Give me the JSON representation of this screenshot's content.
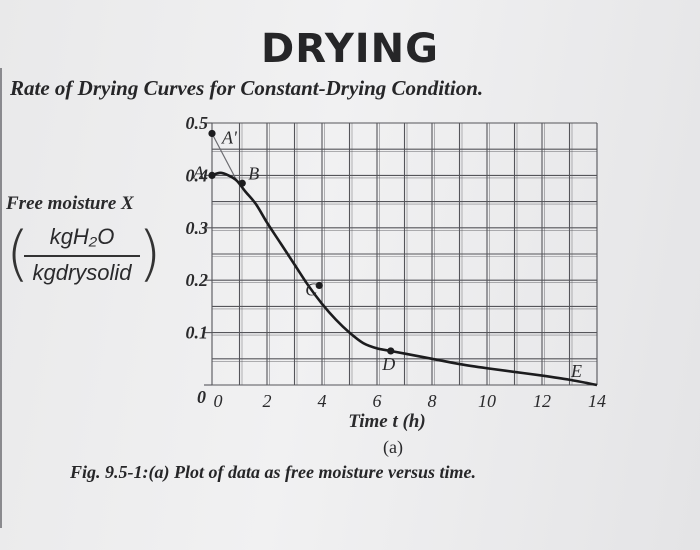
{
  "header": {
    "title": "DRYING",
    "subtitle": "Rate of Drying Curves for Constant-Drying Condition."
  },
  "axis": {
    "ylabel": "Free moisture X",
    "y_unit_numerator": "kgH₂O",
    "y_unit_denominator": "kgdrysolid",
    "xlabel": "Time t (h)",
    "sublabel": "(a)"
  },
  "caption": "Fig. 9.5-1:(a) Plot of data as free moisture versus time.",
  "chart_data": {
    "type": "line",
    "title": "",
    "xlabel": "Time t (h)",
    "ylabel": "Free moisture X (kgH₂O / kgdrysolid)",
    "xlim": [
      0,
      14
    ],
    "ylim": [
      0,
      0.5
    ],
    "x_ticks": [
      "0",
      "2",
      "4",
      "6",
      "8",
      "10",
      "12",
      "14"
    ],
    "y_ticks": [
      "0",
      "0.1",
      "0.2",
      "0.3",
      "0.4",
      "0.5"
    ],
    "grid": true,
    "series": [
      {
        "x": [
          0,
          0.3,
          0.6,
          0.9,
          1.2,
          1.6,
          2.0,
          2.5,
          3.0,
          3.5,
          4.0,
          4.5,
          5.0,
          5.5,
          6.0,
          6.5,
          7.0,
          8.0,
          9.0,
          10.0,
          11.0,
          12.0,
          13.0,
          14.0
        ],
        "y": [
          0.4,
          0.405,
          0.4,
          0.39,
          0.37,
          0.345,
          0.31,
          0.27,
          0.23,
          0.19,
          0.155,
          0.125,
          0.1,
          0.08,
          0.07,
          0.065,
          0.06,
          0.05,
          0.04,
          0.032,
          0.025,
          0.018,
          0.01,
          0.0
        ]
      }
    ],
    "segments": [
      {
        "from": "A'",
        "x": [
          0,
          0.9
        ],
        "y": [
          0.48,
          0.39
        ]
      }
    ],
    "points": [
      {
        "label": "A'",
        "x": 0,
        "y": 0.48
      },
      {
        "label": "A",
        "x": 0,
        "y": 0.4
      },
      {
        "label": "B",
        "x": 1.1,
        "y": 0.385
      },
      {
        "label": "C",
        "x": 3.9,
        "y": 0.19
      },
      {
        "label": "D",
        "x": 6.5,
        "y": 0.065
      },
      {
        "label": "E",
        "x": 14,
        "y": 0.0
      }
    ],
    "colors": {
      "curve": "#1c1c1e",
      "grid": "#55555a"
    }
  }
}
